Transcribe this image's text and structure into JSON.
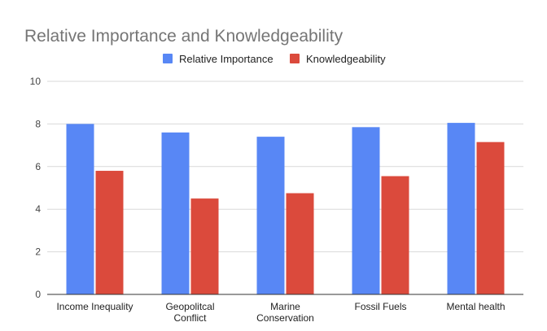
{
  "chart_data": {
    "type": "bar",
    "title": "Relative Importance and Knowledgeability",
    "categories": [
      [
        "Income Inequality"
      ],
      [
        "Geopolitcal",
        "Conflict"
      ],
      [
        "Marine",
        "Conservation"
      ],
      [
        "Fossil Fuels"
      ],
      [
        "Mental health"
      ]
    ],
    "series": [
      {
        "name": "Relative Importance",
        "color": "#5887F5",
        "values": [
          8.0,
          7.6,
          7.4,
          7.85,
          8.05
        ]
      },
      {
        "name": "Knowledgeability",
        "color": "#DB4A3C",
        "values": [
          5.8,
          4.5,
          4.75,
          5.55,
          7.15
        ]
      }
    ],
    "ylim": [
      0,
      10
    ],
    "yticks": [
      "0",
      "2",
      "4",
      "6",
      "8",
      "10"
    ],
    "grid": true,
    "legend": "top-center"
  }
}
